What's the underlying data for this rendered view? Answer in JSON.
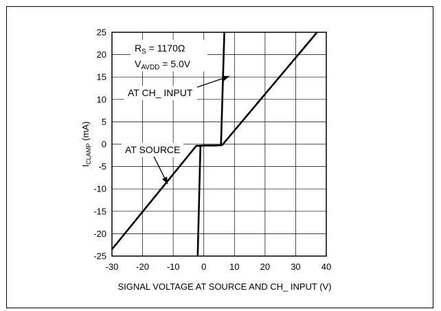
{
  "chart_data": {
    "type": "line",
    "title": "",
    "xlabel": "SIGNAL VOLTAGE AT SOURCE AND CH_ INPUT (V)",
    "ylabel": {
      "main": "I",
      "sub": "CLAMP",
      "unit": " (mA)"
    },
    "xlim": [
      -30,
      40
    ],
    "ylim": [
      -25,
      25
    ],
    "x_ticks": [
      "-30",
      "-20",
      "-10",
      "0",
      "10",
      "20",
      "30",
      "40"
    ],
    "y_ticks": [
      "25",
      "20",
      "15",
      "10",
      "5",
      "0",
      "-5",
      "-10",
      "-15",
      "-20",
      "-25"
    ],
    "grid": true,
    "series": [
      {
        "name": "AT SOURCE",
        "points": [
          [
            -30,
            -23.5
          ],
          [
            -2.5,
            -0.4
          ],
          [
            0,
            -0.3
          ],
          [
            4,
            -0.3
          ],
          [
            6,
            -0.2
          ],
          [
            37,
            25
          ]
        ]
      },
      {
        "name": "AT CH_ INPUT",
        "points": [
          [
            -2,
            -25
          ],
          [
            -1.1,
            -0.4
          ],
          [
            0,
            -0.3
          ],
          [
            4,
            -0.3
          ],
          [
            5.6,
            -0.2
          ],
          [
            6.7,
            25
          ]
        ]
      }
    ],
    "annotations": {
      "rs": {
        "main": "R",
        "sub": "S",
        "rest": " = 1170Ω"
      },
      "vavdd": {
        "main": "V",
        "sub": "AVDD",
        "rest": " = 5.0V"
      },
      "at_ch_input": "AT CH_ INPUT",
      "at_source": "AT SOURCE"
    },
    "colors": {
      "line": "#000000",
      "grid": "#000000"
    }
  }
}
